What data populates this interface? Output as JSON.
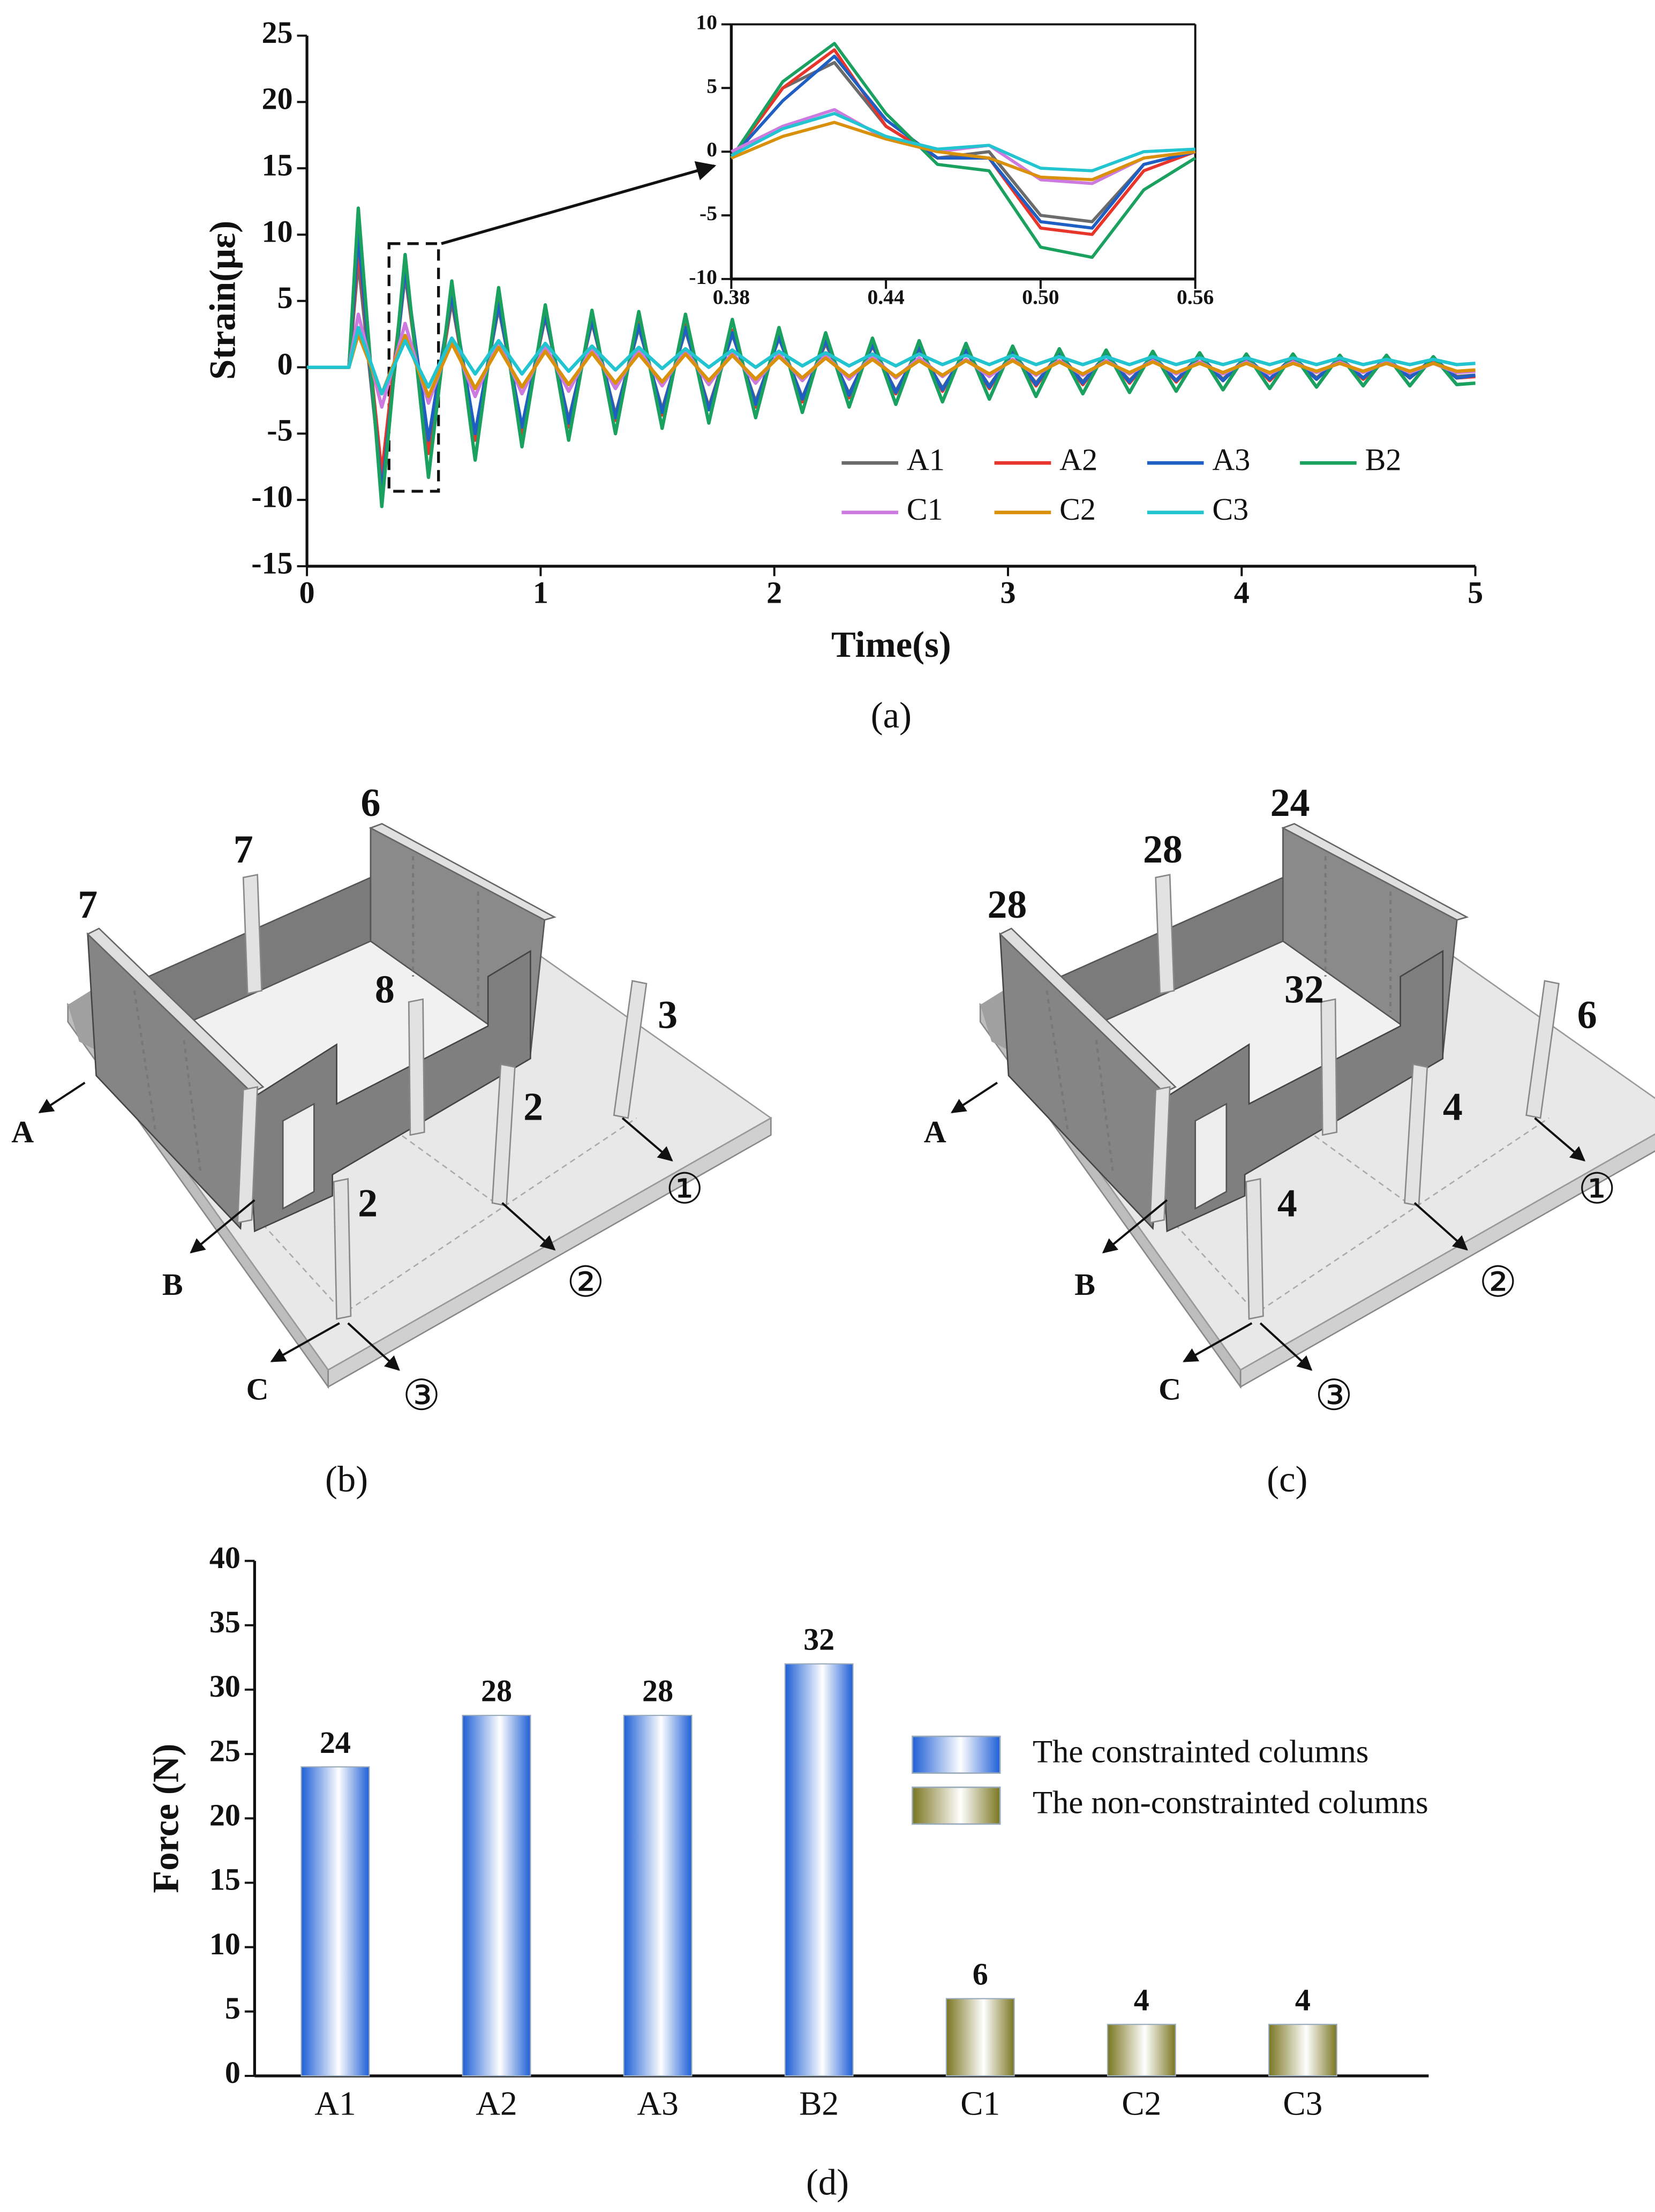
{
  "chart_data": [
    {
      "type": "line",
      "caption": "(a)",
      "xlabel": "Time(s)",
      "ylabel": "Strain(με)",
      "xlim": [
        0,
        5
      ],
      "xticks": [
        0,
        1,
        2,
        3,
        4,
        5
      ],
      "ylim": [
        -15,
        25
      ],
      "yticks": [
        -15,
        -10,
        -5,
        0,
        5,
        10,
        15,
        20,
        25
      ],
      "legend": "lower right",
      "x": [
        0,
        0.18,
        0.22,
        0.32,
        0.42,
        0.52,
        0.62,
        0.72,
        0.82,
        0.92,
        1.02,
        1.12,
        1.22,
        1.32,
        1.42,
        1.52,
        1.62,
        1.72,
        1.82,
        1.92,
        2.02,
        2.12,
        2.22,
        2.32,
        2.42,
        2.52,
        2.62,
        2.72,
        2.82,
        2.92,
        3.02,
        3.12,
        3.22,
        3.32,
        3.42,
        3.52,
        3.62,
        3.72,
        3.82,
        3.92,
        4.02,
        4.12,
        4.22,
        4.32,
        4.42,
        4.52,
        4.62,
        4.72,
        4.82,
        4.92,
        5
      ],
      "series": [
        {
          "name": "A1",
          "color": "#6b6b6b",
          "values": [
            0,
            0,
            8,
            -9,
            7,
            -6,
            5,
            -5,
            4.5,
            -4.5,
            3.8,
            -4,
            3.4,
            -3.6,
            3,
            -3.2,
            2.8,
            -3,
            2.5,
            -2.6,
            2.2,
            -2.3,
            1.8,
            -2,
            1.6,
            -1.8,
            1.4,
            -1.6,
            1.2,
            -1.4,
            1.1,
            -1.2,
            1,
            -1.1,
            0.9,
            -1,
            0.8,
            -1,
            0.8,
            -0.9,
            0.7,
            -0.9,
            0.7,
            -0.8,
            0.6,
            -0.8,
            0.6,
            -0.7,
            0.6,
            -0.7,
            -0.6
          ]
        },
        {
          "name": "A2",
          "color": "#e8352b",
          "values": [
            0,
            0,
            9,
            -8,
            7.5,
            -6.5,
            5.5,
            -5.5,
            5,
            -5,
            4,
            -4.5,
            3.6,
            -4,
            3.4,
            -3.6,
            3.2,
            -3.2,
            2.8,
            -3,
            2.4,
            -2.6,
            2,
            -2.3,
            1.7,
            -2,
            1.5,
            -1.8,
            1.3,
            -1.6,
            1.2,
            -1.4,
            1,
            -1.3,
            1,
            -1.2,
            0.9,
            -1.1,
            0.8,
            -1,
            0.8,
            -1,
            0.7,
            -0.9,
            0.7,
            -0.9,
            0.6,
            -0.8,
            0.6,
            -0.8,
            -0.7
          ]
        },
        {
          "name": "A3",
          "color": "#1f5fc4",
          "values": [
            0,
            0,
            10,
            -9.5,
            7.5,
            -5.5,
            5.5,
            -5,
            4.8,
            -4.5,
            4,
            -4.2,
            3.6,
            -3.8,
            3.2,
            -3.4,
            3,
            -3.2,
            2.6,
            -2.8,
            2.3,
            -2.4,
            2,
            -2.1,
            1.7,
            -1.9,
            1.5,
            -1.7,
            1.3,
            -1.5,
            1.2,
            -1.3,
            1.1,
            -1.2,
            1,
            -1.1,
            0.9,
            -1,
            0.9,
            -1,
            0.8,
            -0.9,
            0.8,
            -0.9,
            0.7,
            -0.8,
            0.7,
            -0.8,
            0.7,
            -0.8,
            -0.6
          ]
        },
        {
          "name": "B2",
          "color": "#1aa15f",
          "values": [
            0,
            0,
            12,
            -10.5,
            8.5,
            -8.3,
            6.5,
            -7,
            6,
            -6,
            4.7,
            -5.5,
            4.3,
            -5,
            4.2,
            -4.6,
            4,
            -4.2,
            3.6,
            -3.8,
            3,
            -3.4,
            2.6,
            -3,
            2.2,
            -2.8,
            2,
            -2.6,
            1.8,
            -2.4,
            1.6,
            -2.2,
            1.4,
            -2,
            1.3,
            -1.9,
            1.2,
            -1.8,
            1.1,
            -1.7,
            1,
            -1.6,
            1,
            -1.5,
            0.9,
            -1.4,
            0.9,
            -1.4,
            0.8,
            -1.3,
            -1.2
          ]
        },
        {
          "name": "C1",
          "color": "#cc7ae0",
          "values": [
            0,
            0,
            4,
            -3,
            3.3,
            -2.7,
            2.2,
            -2.2,
            2,
            -2,
            1.6,
            -1.8,
            1.5,
            -1.6,
            1.4,
            -1.4,
            1.3,
            -1.3,
            1.1,
            -1.2,
            1,
            -1,
            0.9,
            -0.9,
            0.8,
            -0.8,
            0.7,
            -0.7,
            0.6,
            -0.7,
            0.6,
            -0.6,
            0.5,
            -0.6,
            0.5,
            -0.5,
            0.5,
            -0.5,
            0.4,
            -0.5,
            0.4,
            -0.5,
            0.4,
            -0.4,
            0.4,
            -0.4,
            0.4,
            -0.4,
            0.3,
            -0.4,
            -0.3
          ]
        },
        {
          "name": "C2",
          "color": "#d9900a",
          "values": [
            0,
            0,
            2.5,
            -2,
            2.4,
            -2.2,
            1.8,
            -1.6,
            1.5,
            -1.5,
            1.2,
            -1.3,
            1.1,
            -1.2,
            1,
            -1.1,
            1,
            -1,
            0.9,
            -0.9,
            0.8,
            -0.8,
            0.7,
            -0.7,
            0.6,
            -0.7,
            0.5,
            -0.6,
            0.5,
            -0.5,
            0.5,
            -0.5,
            0.4,
            -0.5,
            0.4,
            -0.4,
            0.4,
            -0.4,
            0.3,
            -0.4,
            0.3,
            -0.4,
            0.3,
            -0.3,
            0.3,
            -0.3,
            0.3,
            -0.3,
            0.3,
            -0.3,
            -0.2
          ]
        },
        {
          "name": "C3",
          "color": "#22c4cf",
          "values": [
            0,
            0,
            3,
            -2,
            2,
            -1.5,
            2.2,
            -0.5,
            2,
            -0.5,
            1.8,
            -0.3,
            1.6,
            -0.2,
            1.5,
            -0.1,
            1.4,
            0,
            1.3,
            0,
            1.2,
            0.1,
            1.1,
            0.1,
            1,
            0.1,
            1,
            0.2,
            0.9,
            0.2,
            0.9,
            0.2,
            0.8,
            0.2,
            0.8,
            0.2,
            0.8,
            0.2,
            0.7,
            0.2,
            0.7,
            0.2,
            0.7,
            0.2,
            0.7,
            0.2,
            0.6,
            0.2,
            0.6,
            0.2,
            0.3
          ]
        }
      ]
    },
    {
      "type": "line",
      "frame": true,
      "xlim": [
        0.38,
        0.56
      ],
      "xticks": [
        0.38,
        0.44,
        {
          "value": 0.5,
          "label": "0.50"
        },
        0.56
      ],
      "ylim": [
        -10,
        10
      ],
      "yticks": [
        -10,
        -5,
        0,
        5,
        10
      ],
      "x": [
        0.38,
        0.4,
        0.42,
        0.44,
        0.46,
        0.48,
        0.5,
        0.52,
        0.54,
        0.56
      ],
      "series": [
        {
          "color": "#6b6b6b",
          "values": [
            -0.5,
            5,
            7,
            2,
            -0.5,
            0,
            -5,
            -5.5,
            -1,
            0
          ]
        },
        {
          "color": "#e8352b",
          "values": [
            -0.5,
            5,
            8,
            2,
            -0.5,
            -0.5,
            -6,
            -6.5,
            -1.5,
            0
          ]
        },
        {
          "color": "#1f5fc4",
          "values": [
            -0.5,
            4,
            7.5,
            2.5,
            -0.5,
            -0.5,
            -5.5,
            -6,
            -1,
            0
          ]
        },
        {
          "color": "#1aa15f",
          "values": [
            -0.5,
            5.5,
            8.5,
            3,
            -1,
            -1.5,
            -7.5,
            -8.3,
            -3,
            -0.5
          ]
        },
        {
          "color": "#cc7ae0",
          "values": [
            0,
            2,
            3.3,
            1,
            0,
            0.5,
            -2.2,
            -2.5,
            -0.5,
            0
          ]
        },
        {
          "color": "#d9900a",
          "values": [
            -0.5,
            1.2,
            2.3,
            1,
            0,
            -0.5,
            -2,
            -2.2,
            -0.5,
            0
          ]
        },
        {
          "color": "#22c4cf",
          "values": [
            -0.3,
            1.8,
            3,
            1.2,
            0.2,
            0.5,
            -1.3,
            -1.5,
            0,
            0.2
          ]
        }
      ]
    },
    {
      "type": "bar",
      "caption": "(d)",
      "ylabel": "Force (N)",
      "categories": [
        "A1",
        "A2",
        "A3",
        "B2",
        "C1",
        "C2",
        "C3"
      ],
      "ylim": [
        0,
        40
      ],
      "yticks": [
        0,
        5,
        10,
        15,
        20,
        25,
        30,
        35,
        40
      ],
      "series": [
        {
          "name": "The constrainted columns",
          "color": "#1f5fd6",
          "values": [
            24,
            28,
            28,
            32,
            null,
            null,
            null
          ]
        },
        {
          "name": "The non-constrainted columns",
          "color": "#7a7622",
          "values": [
            null,
            null,
            null,
            null,
            6,
            4,
            4
          ]
        }
      ]
    }
  ],
  "diagrams": [
    {
      "caption": "(b)",
      "axes": [
        "A",
        "B",
        "C",
        "①",
        "②",
        "③"
      ],
      "labels": [
        {
          "text": "7",
          "color": "#1f6fd6"
        },
        {
          "text": "7",
          "color": "#e8207a"
        },
        {
          "text": "6",
          "color": "#111111"
        },
        {
          "text": "8",
          "color": "#1aa05a"
        },
        {
          "text": "3",
          "color": "#c07ad8"
        },
        {
          "text": "2",
          "color": "#d99a10"
        },
        {
          "text": "2",
          "color": "#20b8c8"
        }
      ]
    },
    {
      "caption": "(c)",
      "axes": [
        "A",
        "B",
        "C",
        "①",
        "②",
        "③"
      ],
      "labels": [
        {
          "text": "28",
          "color": "#1f6fd6"
        },
        {
          "text": "28",
          "color": "#e8207a"
        },
        {
          "text": "24",
          "color": "#111111"
        },
        {
          "text": "32",
          "color": "#1aa05a"
        },
        {
          "text": "6",
          "color": "#c07ad8"
        },
        {
          "text": "4",
          "color": "#d99a10"
        },
        {
          "text": "4",
          "color": "#20b8c8"
        }
      ]
    }
  ]
}
